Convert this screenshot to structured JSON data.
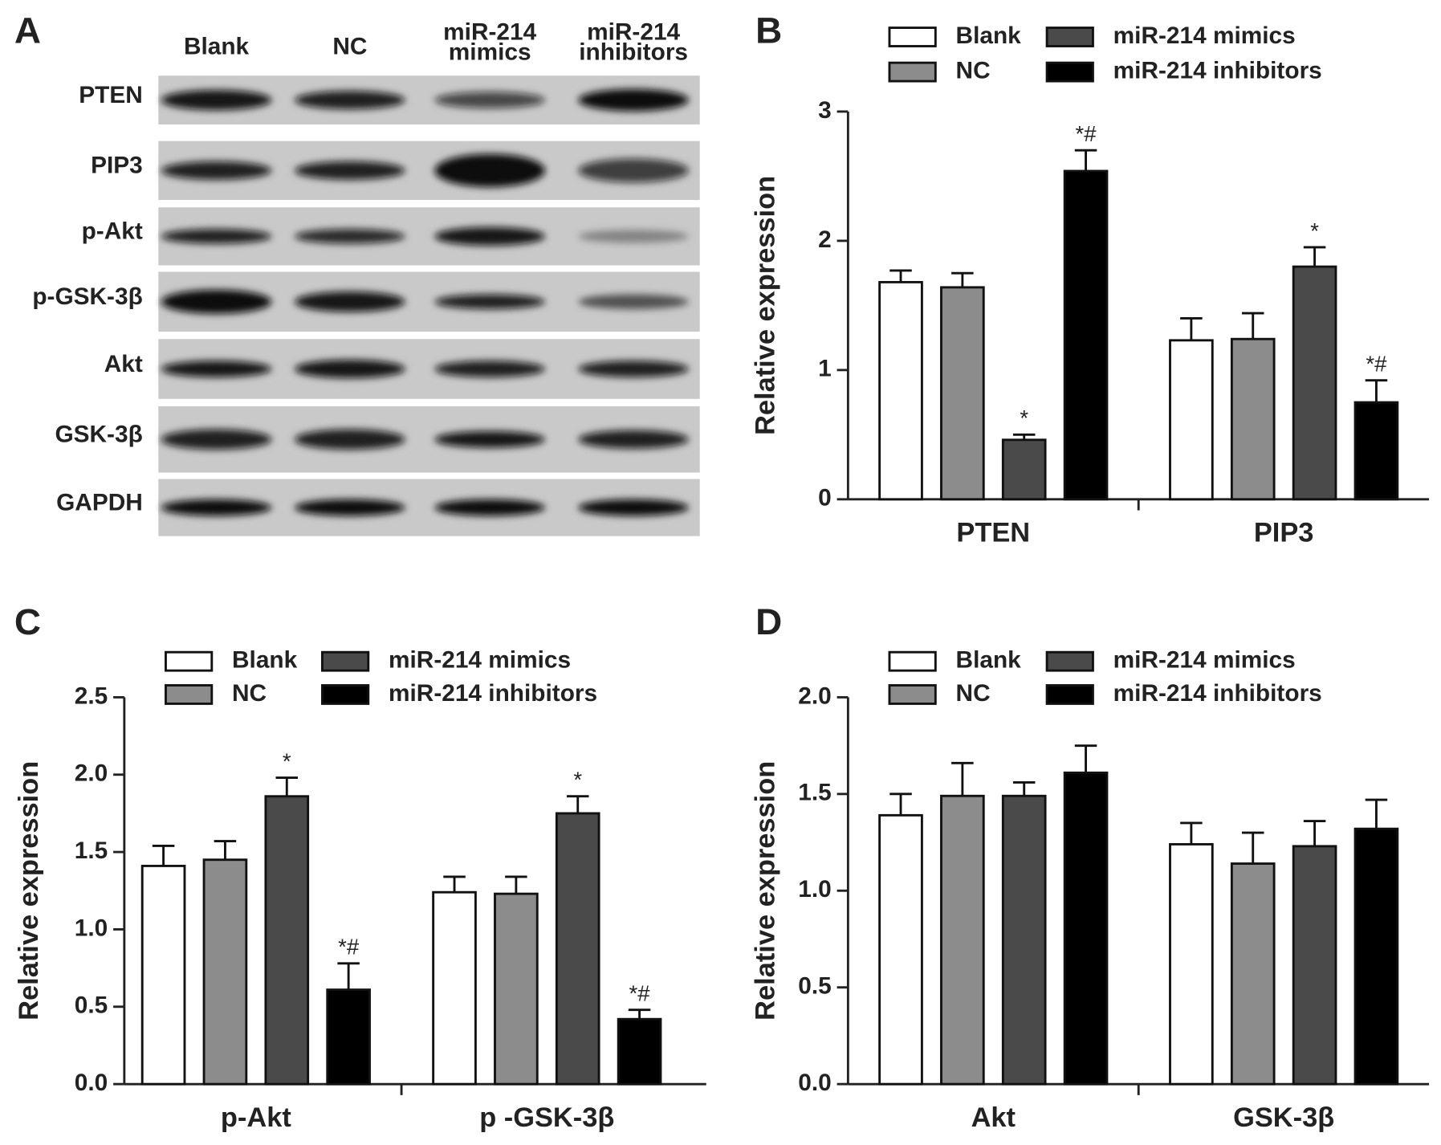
{
  "blot": {
    "panel": "A",
    "lanes": [
      [
        "Blank"
      ],
      [
        "NC"
      ],
      [
        "miR-214",
        "mimics"
      ],
      [
        "miR-214",
        "inhibitors"
      ]
    ],
    "proteins": [
      "PTEN",
      "PIP3",
      "p-Akt",
      "p-GSK-3β",
      "Akt",
      "GSK-3β",
      "GAPDH"
    ]
  },
  "chart_data": [
    {
      "type": "bar",
      "panel": "B",
      "y_label": "Relative expression",
      "categories": [
        "PTEN",
        "PIP3"
      ],
      "series": [
        {
          "name": "Blank",
          "color": "#ffffff",
          "values": [
            1.68,
            1.23
          ],
          "errors": [
            0.09,
            0.17
          ],
          "annotations": [
            null,
            null
          ]
        },
        {
          "name": "NC",
          "color": "#8c8c8c",
          "values": [
            1.64,
            1.24
          ],
          "errors": [
            0.11,
            0.2
          ],
          "annotations": [
            null,
            null
          ]
        },
        {
          "name": "miR-214 mimics",
          "color": "#4a4a4a",
          "values": [
            0.46,
            1.8
          ],
          "errors": [
            0.04,
            0.15
          ],
          "annotations": [
            "*",
            "*"
          ]
        },
        {
          "name": "miR-214 inhibitors",
          "color": "#000000",
          "values": [
            2.54,
            0.75
          ],
          "errors": [
            0.16,
            0.17
          ],
          "annotations": [
            "*#",
            "*#"
          ]
        }
      ],
      "ylim": [
        0,
        3
      ],
      "yticks": [
        0,
        1,
        2,
        3
      ]
    },
    {
      "type": "bar",
      "panel": "C",
      "y_label": "Relative expression",
      "categories": [
        "p-Akt",
        "p -GSK-3β"
      ],
      "series": [
        {
          "name": "Blank",
          "color": "#ffffff",
          "values": [
            1.41,
            1.24
          ],
          "errors": [
            0.13,
            0.1
          ],
          "annotations": [
            null,
            null
          ]
        },
        {
          "name": "NC",
          "color": "#8c8c8c",
          "values": [
            1.45,
            1.23
          ],
          "errors": [
            0.12,
            0.11
          ],
          "annotations": [
            null,
            null
          ]
        },
        {
          "name": "miR-214 mimics",
          "color": "#4a4a4a",
          "values": [
            1.86,
            1.75
          ],
          "errors": [
            0.12,
            0.11
          ],
          "annotations": [
            "*",
            "*"
          ]
        },
        {
          "name": "miR-214 inhibitors",
          "color": "#000000",
          "values": [
            0.61,
            0.42
          ],
          "errors": [
            0.17,
            0.06
          ],
          "annotations": [
            "*#",
            "*#"
          ]
        }
      ],
      "ylim": [
        0,
        2.5
      ],
      "yticks": [
        {
          "value": 0,
          "label": "0.0"
        },
        0.5,
        {
          "value": 1,
          "label": "1.0"
        },
        1.5,
        {
          "value": 2,
          "label": "2.0"
        },
        2.5
      ]
    },
    {
      "type": "bar",
      "panel": "D",
      "y_label": "Relative expression",
      "categories": [
        "Akt",
        "GSK-3β"
      ],
      "series": [
        {
          "name": "Blank",
          "color": "#ffffff",
          "values": [
            1.39,
            1.24
          ],
          "errors": [
            0.11,
            0.11
          ],
          "annotations": [
            null,
            null
          ]
        },
        {
          "name": "NC",
          "color": "#8c8c8c",
          "values": [
            1.49,
            1.14
          ],
          "errors": [
            0.17,
            0.16
          ],
          "annotations": [
            null,
            null
          ]
        },
        {
          "name": "miR-214 mimics",
          "color": "#4a4a4a",
          "values": [
            1.49,
            1.23
          ],
          "errors": [
            0.07,
            0.13
          ],
          "annotations": [
            null,
            null
          ]
        },
        {
          "name": "miR-214 inhibitors",
          "color": "#000000",
          "values": [
            1.61,
            1.32
          ],
          "errors": [
            0.14,
            0.15
          ],
          "annotations": [
            null,
            null
          ]
        }
      ],
      "ylim": [
        0,
        2
      ],
      "yticks": [
        {
          "value": 0,
          "label": "0.0"
        },
        0.5,
        {
          "value": 1,
          "label": "1.0"
        },
        1.5,
        {
          "value": 2,
          "label": "2.0"
        }
      ]
    }
  ]
}
